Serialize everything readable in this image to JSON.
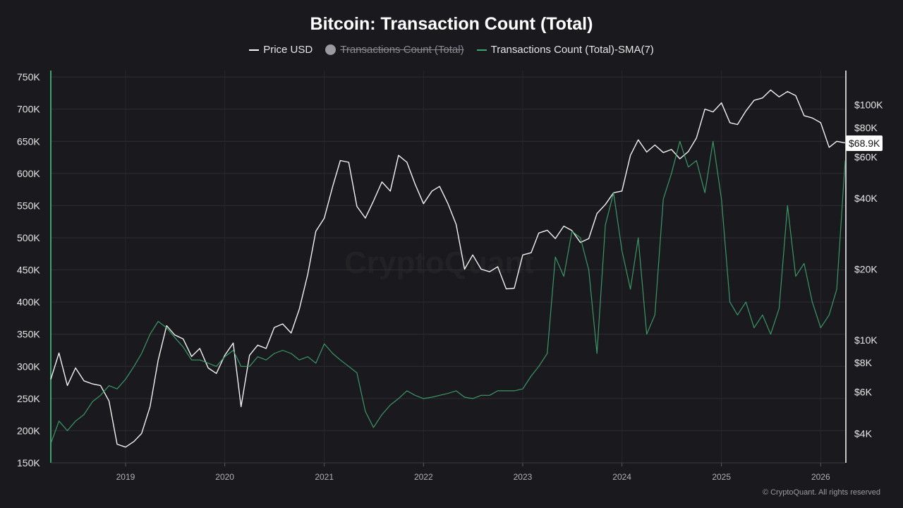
{
  "chart_data": {
    "type": "line",
    "title": "Bitcoin: Transaction Count (Total)",
    "legend_position": "top-center",
    "legend": [
      {
        "name": "Price USD",
        "color": "#ffffff",
        "visible": true
      },
      {
        "name": "Transactions Count (Total)",
        "color": "#9a9aa0",
        "visible": false
      },
      {
        "name": "Transactions Count (Total)-SMA(7)",
        "color": "#3ea56e",
        "visible": true
      }
    ],
    "x_axis": {
      "type": "date",
      "range": [
        "2018-04-01",
        "2026-04-01"
      ],
      "tick_labels": [
        "2019",
        "2020",
        "2021",
        "2022",
        "2023",
        "2024",
        "2025",
        "2026"
      ]
    },
    "y_left": {
      "label": "",
      "range": [
        150000,
        760000
      ],
      "ticks": [
        150000,
        200000,
        250000,
        300000,
        350000,
        400000,
        450000,
        500000,
        550000,
        600000,
        650000,
        700000,
        750000
      ],
      "tick_labels": [
        "150K",
        "200K",
        "250K",
        "300K",
        "350K",
        "400K",
        "450K",
        "500K",
        "550K",
        "600K",
        "650K",
        "700K",
        "750K"
      ]
    },
    "y_right": {
      "label": "",
      "scale": "log",
      "range": [
        3000,
        140000
      ],
      "ticks": [
        4000,
        6000,
        8000,
        10000,
        20000,
        40000,
        60000,
        80000,
        100000
      ],
      "tick_labels": [
        "$4K",
        "$6K",
        "$8K",
        "$10K",
        "$20K",
        "$40K",
        "$60K",
        "$80K",
        "$100K"
      ]
    },
    "last_price_label": "$68.9K",
    "grid": true,
    "series": [
      {
        "name": "Price USD",
        "axis": "right",
        "color": "#ffffff",
        "points": [
          [
            "2018-04-01",
            6800
          ],
          [
            "2018-05-01",
            8800
          ],
          [
            "2018-06-01",
            6400
          ],
          [
            "2018-07-01",
            7600
          ],
          [
            "2018-08-01",
            6700
          ],
          [
            "2018-09-01",
            6500
          ],
          [
            "2018-10-01",
            6400
          ],
          [
            "2018-11-01",
            5500
          ],
          [
            "2018-12-01",
            3600
          ],
          [
            "2019-01-01",
            3500
          ],
          [
            "2019-02-01",
            3700
          ],
          [
            "2019-03-01",
            4000
          ],
          [
            "2019-04-01",
            5200
          ],
          [
            "2019-05-01",
            8200
          ],
          [
            "2019-06-01",
            11500
          ],
          [
            "2019-07-01",
            10500
          ],
          [
            "2019-08-01",
            10100
          ],
          [
            "2019-09-01",
            8500
          ],
          [
            "2019-10-01",
            9200
          ],
          [
            "2019-11-01",
            7600
          ],
          [
            "2019-12-01",
            7200
          ],
          [
            "2020-01-01",
            8600
          ],
          [
            "2020-02-01",
            9700
          ],
          [
            "2020-03-01",
            5200
          ],
          [
            "2020-04-01",
            8600
          ],
          [
            "2020-05-01",
            9500
          ],
          [
            "2020-06-01",
            9200
          ],
          [
            "2020-07-01",
            11300
          ],
          [
            "2020-08-01",
            11700
          ],
          [
            "2020-09-01",
            10700
          ],
          [
            "2020-10-01",
            13500
          ],
          [
            "2020-11-01",
            19000
          ],
          [
            "2020-12-01",
            29000
          ],
          [
            "2021-01-01",
            33000
          ],
          [
            "2021-02-01",
            45000
          ],
          [
            "2021-03-01",
            58000
          ],
          [
            "2021-04-01",
            57000
          ],
          [
            "2021-05-01",
            37000
          ],
          [
            "2021-06-01",
            33000
          ],
          [
            "2021-07-01",
            39000
          ],
          [
            "2021-08-01",
            47000
          ],
          [
            "2021-09-01",
            43000
          ],
          [
            "2021-10-01",
            61000
          ],
          [
            "2021-11-01",
            57000
          ],
          [
            "2021-12-01",
            46000
          ],
          [
            "2022-01-01",
            38000
          ],
          [
            "2022-02-01",
            43000
          ],
          [
            "2022-03-01",
            45000
          ],
          [
            "2022-04-01",
            38000
          ],
          [
            "2022-05-01",
            31000
          ],
          [
            "2022-06-01",
            20000
          ],
          [
            "2022-07-01",
            23000
          ],
          [
            "2022-08-01",
            20000
          ],
          [
            "2022-09-01",
            19500
          ],
          [
            "2022-10-01",
            20500
          ],
          [
            "2022-11-01",
            16500
          ],
          [
            "2022-12-01",
            16600
          ],
          [
            "2023-01-01",
            23000
          ],
          [
            "2023-02-01",
            23500
          ],
          [
            "2023-03-01",
            28500
          ],
          [
            "2023-04-01",
            29300
          ],
          [
            "2023-05-01",
            27000
          ],
          [
            "2023-06-01",
            30500
          ],
          [
            "2023-07-01",
            29200
          ],
          [
            "2023-08-01",
            26000
          ],
          [
            "2023-09-01",
            27000
          ],
          [
            "2023-10-01",
            34500
          ],
          [
            "2023-11-01",
            37700
          ],
          [
            "2023-12-01",
            42300
          ],
          [
            "2024-01-01",
            43000
          ],
          [
            "2024-02-01",
            61000
          ],
          [
            "2024-03-01",
            71000
          ],
          [
            "2024-04-01",
            63000
          ],
          [
            "2024-05-01",
            67500
          ],
          [
            "2024-06-01",
            62700
          ],
          [
            "2024-07-01",
            64600
          ],
          [
            "2024-08-01",
            59000
          ],
          [
            "2024-09-01",
            63300
          ],
          [
            "2024-10-01",
            72300
          ],
          [
            "2024-11-01",
            96000
          ],
          [
            "2024-12-01",
            93400
          ],
          [
            "2025-01-01",
            102000
          ],
          [
            "2025-02-01",
            84000
          ],
          [
            "2025-03-01",
            82500
          ],
          [
            "2025-04-01",
            94200
          ],
          [
            "2025-05-01",
            104600
          ],
          [
            "2025-06-01",
            107100
          ],
          [
            "2025-07-01",
            115700
          ],
          [
            "2025-08-01",
            108200
          ],
          [
            "2025-09-01",
            114000
          ],
          [
            "2025-10-01",
            109500
          ],
          [
            "2025-11-01",
            90000
          ],
          [
            "2025-12-01",
            88000
          ],
          [
            "2026-01-01",
            84000
          ],
          [
            "2026-02-01",
            66000
          ],
          [
            "2026-03-01",
            70000
          ],
          [
            "2026-04-01",
            68900
          ]
        ]
      },
      {
        "name": "Transactions Count (Total)-SMA(7)",
        "axis": "left",
        "color": "#3ea56e",
        "points": [
          [
            "2018-04-01",
            180000
          ],
          [
            "2018-05-01",
            215000
          ],
          [
            "2018-06-01",
            200000
          ],
          [
            "2018-07-01",
            215000
          ],
          [
            "2018-08-01",
            225000
          ],
          [
            "2018-09-01",
            245000
          ],
          [
            "2018-10-01",
            255000
          ],
          [
            "2018-11-01",
            270000
          ],
          [
            "2018-12-01",
            265000
          ],
          [
            "2019-01-01",
            280000
          ],
          [
            "2019-02-01",
            300000
          ],
          [
            "2019-03-01",
            320000
          ],
          [
            "2019-04-01",
            350000
          ],
          [
            "2019-05-01",
            370000
          ],
          [
            "2019-06-01",
            360000
          ],
          [
            "2019-07-01",
            345000
          ],
          [
            "2019-08-01",
            330000
          ],
          [
            "2019-09-01",
            310000
          ],
          [
            "2019-10-01",
            310000
          ],
          [
            "2019-11-01",
            305000
          ],
          [
            "2019-12-01",
            300000
          ],
          [
            "2020-01-01",
            315000
          ],
          [
            "2020-02-01",
            325000
          ],
          [
            "2020-03-01",
            300000
          ],
          [
            "2020-04-01",
            300000
          ],
          [
            "2020-05-01",
            315000
          ],
          [
            "2020-06-01",
            310000
          ],
          [
            "2020-07-01",
            320000
          ],
          [
            "2020-08-01",
            325000
          ],
          [
            "2020-09-01",
            320000
          ],
          [
            "2020-10-01",
            310000
          ],
          [
            "2020-11-01",
            315000
          ],
          [
            "2020-12-01",
            305000
          ],
          [
            "2021-01-01",
            335000
          ],
          [
            "2021-02-01",
            320000
          ],
          [
            "2021-03-01",
            310000
          ],
          [
            "2021-04-01",
            300000
          ],
          [
            "2021-05-01",
            290000
          ],
          [
            "2021-06-01",
            230000
          ],
          [
            "2021-07-01",
            205000
          ],
          [
            "2021-08-01",
            225000
          ],
          [
            "2021-09-01",
            240000
          ],
          [
            "2021-10-01",
            250000
          ],
          [
            "2021-11-01",
            262000
          ],
          [
            "2021-12-01",
            255000
          ],
          [
            "2022-01-01",
            250000
          ],
          [
            "2022-02-01",
            252000
          ],
          [
            "2022-03-01",
            255000
          ],
          [
            "2022-04-01",
            258000
          ],
          [
            "2022-05-01",
            262000
          ],
          [
            "2022-06-01",
            252000
          ],
          [
            "2022-07-01",
            250000
          ],
          [
            "2022-08-01",
            255000
          ],
          [
            "2022-09-01",
            255000
          ],
          [
            "2022-10-01",
            262000
          ],
          [
            "2022-11-01",
            262000
          ],
          [
            "2022-12-01",
            262000
          ],
          [
            "2023-01-01",
            265000
          ],
          [
            "2023-02-01",
            285000
          ],
          [
            "2023-03-01",
            300000
          ],
          [
            "2023-04-01",
            320000
          ],
          [
            "2023-05-01",
            470000
          ],
          [
            "2023-06-01",
            440000
          ],
          [
            "2023-07-01",
            510000
          ],
          [
            "2023-08-01",
            500000
          ],
          [
            "2023-09-01",
            450000
          ],
          [
            "2023-10-01",
            320000
          ],
          [
            "2023-11-01",
            520000
          ],
          [
            "2023-12-01",
            570000
          ],
          [
            "2024-01-01",
            480000
          ],
          [
            "2024-02-01",
            420000
          ],
          [
            "2024-03-01",
            500000
          ],
          [
            "2024-04-01",
            350000
          ],
          [
            "2024-05-01",
            380000
          ],
          [
            "2024-06-01",
            560000
          ],
          [
            "2024-07-01",
            600000
          ],
          [
            "2024-08-01",
            650000
          ],
          [
            "2024-09-01",
            610000
          ],
          [
            "2024-10-01",
            620000
          ],
          [
            "2024-11-01",
            570000
          ],
          [
            "2024-12-01",
            650000
          ],
          [
            "2025-01-01",
            560000
          ],
          [
            "2025-02-01",
            400000
          ],
          [
            "2025-03-01",
            380000
          ],
          [
            "2025-04-01",
            400000
          ],
          [
            "2025-05-01",
            360000
          ],
          [
            "2025-06-01",
            380000
          ],
          [
            "2025-07-01",
            350000
          ],
          [
            "2025-08-01",
            390000
          ],
          [
            "2025-09-01",
            550000
          ],
          [
            "2025-10-01",
            440000
          ],
          [
            "2025-11-01",
            460000
          ],
          [
            "2025-12-01",
            400000
          ],
          [
            "2026-01-01",
            360000
          ],
          [
            "2026-02-01",
            380000
          ],
          [
            "2026-03-01",
            420000
          ],
          [
            "2026-04-01",
            620000
          ]
        ]
      }
    ]
  },
  "branding": {
    "copyright": "© CryptoQuant. All rights reserved",
    "watermark": "CryptoQuant"
  }
}
